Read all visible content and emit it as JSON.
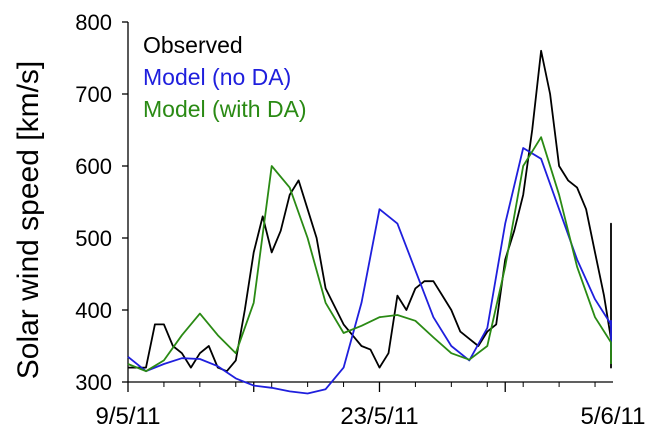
{
  "chart_data": {
    "type": "line",
    "title": "",
    "xlabel": "",
    "ylabel": "Solar wind speed [km/s]",
    "ylim": [
      300,
      800
    ],
    "yticks": [
      300,
      400,
      500,
      600,
      700,
      800
    ],
    "xlim": [
      "2011-05-09",
      "2011-06-05"
    ],
    "xtick_labels": [
      {
        "date": "2011-05-09",
        "label": "9/5/11"
      },
      {
        "date": "2011-05-23",
        "label": "23/5/11"
      },
      {
        "date": "2011-06-05",
        "label": "5/6/11"
      }
    ],
    "grid": false,
    "legend": "top-left",
    "series": [
      {
        "name": "Observed",
        "color": "#000000",
        "points": [
          [
            "2011-05-09",
            320
          ],
          [
            "2011-05-10",
            320
          ],
          [
            "2011-05-10",
            380
          ],
          [
            "2011-05-11",
            380
          ],
          [
            "2011-05-11",
            350
          ],
          [
            "2011-05-12",
            340
          ],
          [
            "2011-05-12",
            320
          ],
          [
            "2011-05-13",
            340
          ],
          [
            "2011-05-13",
            350
          ],
          [
            "2011-05-14",
            320
          ],
          [
            "2011-05-14",
            315
          ],
          [
            "2011-05-15",
            330
          ],
          [
            "2011-05-15",
            400
          ],
          [
            "2011-05-16",
            480
          ],
          [
            "2011-05-16",
            530
          ],
          [
            "2011-05-17",
            480
          ],
          [
            "2011-05-17",
            510
          ],
          [
            "2011-05-18",
            560
          ],
          [
            "2011-05-18",
            580
          ],
          [
            "2011-05-19",
            540
          ],
          [
            "2011-05-19",
            500
          ],
          [
            "2011-05-20",
            430
          ],
          [
            "2011-05-21",
            380
          ],
          [
            "2011-05-21",
            365
          ],
          [
            "2011-05-22",
            350
          ],
          [
            "2011-05-22",
            345
          ],
          [
            "2011-05-23",
            320
          ],
          [
            "2011-05-23",
            340
          ],
          [
            "2011-05-24",
            420
          ],
          [
            "2011-05-24",
            400
          ],
          [
            "2011-05-25",
            430
          ],
          [
            "2011-05-25",
            440
          ],
          [
            "2011-05-26",
            440
          ],
          [
            "2011-05-26",
            420
          ],
          [
            "2011-05-27",
            400
          ],
          [
            "2011-05-27",
            370
          ],
          [
            "2011-05-28",
            360
          ],
          [
            "2011-05-28",
            350
          ],
          [
            "2011-05-29",
            370
          ],
          [
            "2011-05-29",
            380
          ],
          [
            "2011-05-30",
            470
          ],
          [
            "2011-05-30",
            510
          ],
          [
            "2011-05-31",
            560
          ],
          [
            "2011-05-31",
            650
          ],
          [
            "2011-06-01",
            760
          ],
          [
            "2011-06-01",
            700
          ],
          [
            "2011-06-02",
            600
          ],
          [
            "2011-06-02",
            580
          ],
          [
            "2011-06-03",
            570
          ],
          [
            "2011-06-03",
            540
          ],
          [
            "2011-06-04",
            480
          ],
          [
            "2011-06-04",
            420
          ],
          [
            "2011-06-05",
            360
          ],
          [
            "2011-06-05",
            330
          ],
          [
            "2011-06-05",
            320
          ],
          [
            "2011-06-05",
            360
          ],
          [
            "2011-06-05",
            520
          ],
          [
            "2011-06-05",
            510
          ],
          [
            "2011-06-05",
            500
          ]
        ]
      },
      {
        "name": "Model (no DA)",
        "color": "#1f1fdd",
        "points": [
          [
            "2011-05-09",
            335
          ],
          [
            "2011-05-10",
            315
          ],
          [
            "2011-05-11",
            325
          ],
          [
            "2011-05-12",
            333
          ],
          [
            "2011-05-13",
            332
          ],
          [
            "2011-05-14",
            322
          ],
          [
            "2011-05-15",
            305
          ],
          [
            "2011-05-16",
            295
          ],
          [
            "2011-05-17",
            292
          ],
          [
            "2011-05-18",
            287
          ],
          [
            "2011-05-19",
            284
          ],
          [
            "2011-05-20",
            290
          ],
          [
            "2011-05-21",
            320
          ],
          [
            "2011-05-22",
            410
          ],
          [
            "2011-05-23",
            540
          ],
          [
            "2011-05-24",
            520
          ],
          [
            "2011-05-25",
            455
          ],
          [
            "2011-05-26",
            390
          ],
          [
            "2011-05-27",
            350
          ],
          [
            "2011-05-28",
            330
          ],
          [
            "2011-05-29",
            375
          ],
          [
            "2011-05-30",
            520
          ],
          [
            "2011-05-31",
            625
          ],
          [
            "2011-06-01",
            610
          ],
          [
            "2011-06-02",
            540
          ],
          [
            "2011-06-03",
            470
          ],
          [
            "2011-06-04",
            415
          ],
          [
            "2011-06-05",
            380
          ],
          [
            "2011-06-05",
            385
          ],
          [
            "2011-06-05",
            345
          ]
        ]
      },
      {
        "name": "Model (with DA)",
        "color": "#2a8a14",
        "points": [
          [
            "2011-05-09",
            325
          ],
          [
            "2011-05-10",
            315
          ],
          [
            "2011-05-11",
            330
          ],
          [
            "2011-05-12",
            365
          ],
          [
            "2011-05-13",
            395
          ],
          [
            "2011-05-14",
            365
          ],
          [
            "2011-05-15",
            340
          ],
          [
            "2011-05-16",
            410
          ],
          [
            "2011-05-17",
            600
          ],
          [
            "2011-05-18",
            570
          ],
          [
            "2011-05-19",
            500
          ],
          [
            "2011-05-20",
            410
          ],
          [
            "2011-05-21",
            368
          ],
          [
            "2011-05-22",
            378
          ],
          [
            "2011-05-23",
            390
          ],
          [
            "2011-05-24",
            393
          ],
          [
            "2011-05-25",
            385
          ],
          [
            "2011-05-26",
            362
          ],
          [
            "2011-05-27",
            340
          ],
          [
            "2011-05-28",
            331
          ],
          [
            "2011-05-29",
            350
          ],
          [
            "2011-05-30",
            460
          ],
          [
            "2011-05-31",
            600
          ],
          [
            "2011-06-01",
            640
          ],
          [
            "2011-06-02",
            560
          ],
          [
            "2011-06-03",
            460
          ],
          [
            "2011-06-04",
            390
          ],
          [
            "2011-06-05",
            355
          ],
          [
            "2011-06-05",
            335
          ],
          [
            "2011-06-05",
            325
          ]
        ]
      }
    ]
  }
}
